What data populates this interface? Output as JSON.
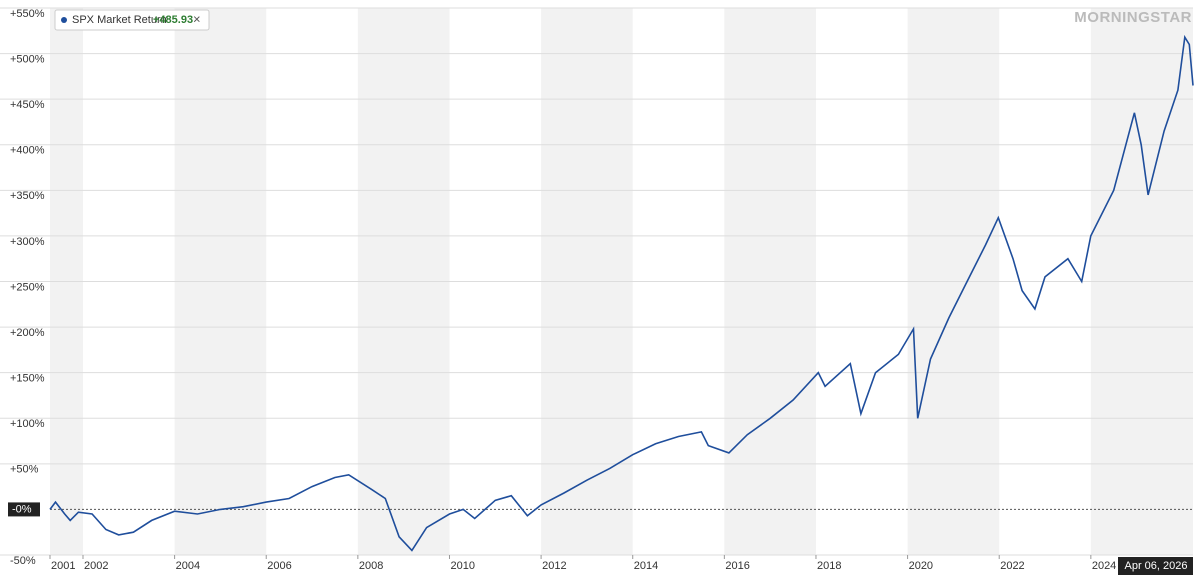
{
  "chart_data": {
    "type": "line",
    "brand": "MORNINGSTAR",
    "legend_value": "+485.93",
    "legend_close": "×",
    "cursor_label": "Apr 06, 2026",
    "x": [
      2001.28,
      2001.4,
      2001.6,
      2001.72,
      2001.9,
      2002.2,
      2002.5,
      2002.78,
      2003.1,
      2003.5,
      2004.0,
      2004.5,
      2005.0,
      2005.5,
      2006.0,
      2006.5,
      2007.0,
      2007.5,
      2007.8,
      2008.3,
      2008.6,
      2008.9,
      2009.18,
      2009.5,
      2010.0,
      2010.3,
      2010.55,
      2011.0,
      2011.35,
      2011.7,
      2012.0,
      2012.5,
      2013.0,
      2013.5,
      2014.0,
      2014.5,
      2015.0,
      2015.5,
      2015.65,
      2016.1,
      2016.5,
      2017.0,
      2017.5,
      2018.05,
      2018.2,
      2018.75,
      2018.98,
      2019.3,
      2019.8,
      2020.13,
      2020.22,
      2020.5,
      2020.9,
      2021.3,
      2021.7,
      2021.98,
      2022.3,
      2022.5,
      2022.78,
      2023.0,
      2023.5,
      2023.8,
      2024.0,
      2024.5,
      2024.95,
      2025.1,
      2025.25,
      2025.6,
      2025.9,
      2026.05,
      2026.15,
      2026.23
    ],
    "series": [
      {
        "name": "SPX Market Return",
        "color": "#1f4e9c",
        "values": [
          0,
          8,
          -5,
          -12,
          -3,
          -5,
          -22,
          -28,
          -25,
          -12,
          -2,
          -5,
          0,
          3,
          8,
          12,
          25,
          35,
          38,
          22,
          12,
          -30,
          -45,
          -20,
          -5,
          0,
          -10,
          10,
          15,
          -7,
          5,
          18,
          32,
          45,
          60,
          72,
          80,
          85,
          70,
          62,
          82,
          100,
          120,
          150,
          135,
          160,
          105,
          150,
          170,
          198,
          100,
          165,
          210,
          250,
          290,
          320,
          275,
          240,
          220,
          255,
          275,
          250,
          300,
          350,
          435,
          400,
          345,
          415,
          460,
          518,
          510,
          465
        ]
      }
    ],
    "xlim": [
      2001.28,
      2026.23
    ],
    "xticks": [
      2001,
      2002,
      2004,
      2006,
      2008,
      2010,
      2012,
      2014,
      2016,
      2018,
      2020,
      2022,
      2024
    ],
    "ylim": [
      -50,
      550
    ],
    "yticks": [
      {
        "value": 550,
        "label": "+550%"
      },
      {
        "value": 500,
        "label": "+500%"
      },
      {
        "value": 450,
        "label": "+450%"
      },
      {
        "value": 400,
        "label": "+400%"
      },
      {
        "value": 350,
        "label": "+350%"
      },
      {
        "value": 300,
        "label": "+300%"
      },
      {
        "value": 250,
        "label": "+250%"
      },
      {
        "value": 200,
        "label": "+200%"
      },
      {
        "value": 150,
        "label": "+150%"
      },
      {
        "value": 100,
        "label": "+100%"
      },
      {
        "value": 50,
        "label": "+50%"
      },
      {
        "value": 0,
        "label": "-0%"
      },
      {
        "value": -50,
        "label": "-50%"
      }
    ],
    "grid": true
  }
}
